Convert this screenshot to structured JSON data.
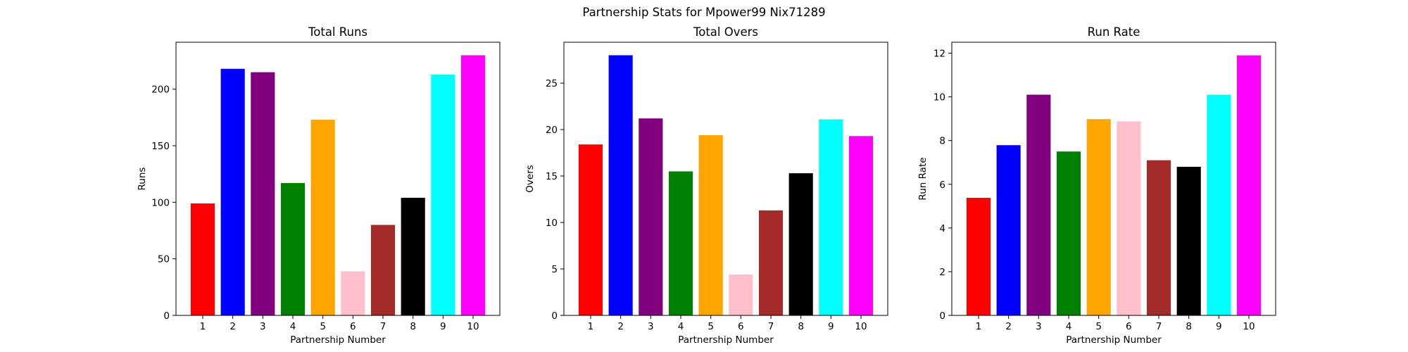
{
  "figure": {
    "suptitle": "Partnership Stats for Mpower99 Nix71289"
  },
  "chart_data": [
    {
      "type": "bar",
      "title": "Total Runs",
      "xlabel": "Partnership Number",
      "ylabel": "Runs",
      "categories": [
        "1",
        "2",
        "3",
        "4",
        "5",
        "6",
        "7",
        "8",
        "9",
        "10"
      ],
      "values": [
        99,
        218,
        215,
        117,
        173,
        39,
        80,
        104,
        213,
        230
      ],
      "colors": [
        "#ff0000",
        "#0000ff",
        "#800080",
        "#008000",
        "#ffa500",
        "#ffc0cb",
        "#a52a2a",
        "#000000",
        "#00ffff",
        "#ff00ff"
      ],
      "ylim": [
        0,
        241.5
      ],
      "yticks": [
        0,
        50,
        100,
        150,
        200
      ],
      "grid": false
    },
    {
      "type": "bar",
      "title": "Total Overs",
      "xlabel": "Partnership Number",
      "ylabel": "Overs",
      "categories": [
        "1",
        "2",
        "3",
        "4",
        "5",
        "6",
        "7",
        "8",
        "9",
        "10"
      ],
      "values": [
        18.4,
        28.0,
        21.2,
        15.5,
        19.4,
        4.4,
        11.3,
        15.3,
        21.1,
        19.3
      ],
      "colors": [
        "#ff0000",
        "#0000ff",
        "#800080",
        "#008000",
        "#ffa500",
        "#ffc0cb",
        "#a52a2a",
        "#000000",
        "#00ffff",
        "#ff00ff"
      ],
      "ylim": [
        0,
        29.4
      ],
      "yticks": [
        0,
        5,
        10,
        15,
        20,
        25
      ],
      "grid": false
    },
    {
      "type": "bar",
      "title": "Run Rate",
      "xlabel": "Partnership Number",
      "ylabel": "Run Rate",
      "categories": [
        "1",
        "2",
        "3",
        "4",
        "5",
        "6",
        "7",
        "8",
        "9",
        "10"
      ],
      "values": [
        5.38,
        7.79,
        10.1,
        7.5,
        8.98,
        8.88,
        7.1,
        6.8,
        10.1,
        11.9
      ],
      "colors": [
        "#ff0000",
        "#0000ff",
        "#800080",
        "#008000",
        "#ffa500",
        "#ffc0cb",
        "#a52a2a",
        "#000000",
        "#00ffff",
        "#ff00ff"
      ],
      "ylim": [
        0,
        12.5
      ],
      "yticks": [
        0,
        2,
        4,
        6,
        8,
        10,
        12
      ],
      "grid": false
    }
  ]
}
